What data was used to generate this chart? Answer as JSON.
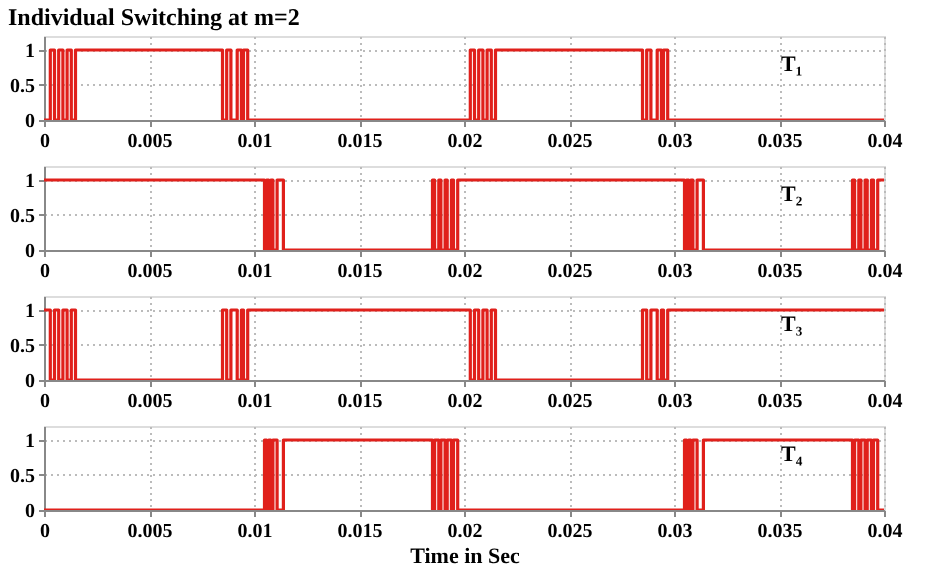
{
  "chart_data": [
    {
      "type": "step",
      "title": "Individual Switching at m=2",
      "x": [
        0,
        0.0003,
        0.0005,
        0.0007,
        0.0009,
        0.0011,
        0.0013,
        0.0015,
        0.0085,
        0.0087,
        0.0089,
        0.0092,
        0.0094,
        0.0095,
        0.0097,
        0.0203,
        0.0205,
        0.0207,
        0.0209,
        0.0211,
        0.0213,
        0.0215,
        0.0285,
        0.0287,
        0.0289,
        0.0292,
        0.0294,
        0.0295,
        0.0297,
        0.04
      ],
      "series": [
        {
          "color": "#e0201b",
          "values": [
            0,
            1,
            0,
            1,
            0,
            1,
            0,
            1,
            0,
            1,
            0,
            1,
            0,
            1,
            0,
            1,
            0,
            1,
            0,
            1,
            0,
            1,
            0,
            1,
            0,
            1,
            0,
            1,
            0,
            0
          ]
        }
      ],
      "xlim": [
        0,
        0.04
      ],
      "xticks": [
        0,
        0.005,
        0.01,
        0.015,
        0.02,
        0.025,
        0.03,
        0.035,
        0.04
      ],
      "ylim": [
        0,
        1.2
      ],
      "yticks": [
        0,
        0.5,
        1
      ],
      "grid": true,
      "annotations": [
        "T₁"
      ]
    },
    {
      "type": "step",
      "x": [
        0,
        0.0105,
        0.0106,
        0.0107,
        0.0108,
        0.0109,
        0.0111,
        0.0114,
        0.0115,
        0.0185,
        0.0186,
        0.0188,
        0.0189,
        0.0191,
        0.0192,
        0.0194,
        0.0195,
        0.0197,
        0.02,
        0.0305,
        0.0306,
        0.0307,
        0.0308,
        0.0309,
        0.0311,
        0.0314,
        0.0315,
        0.0385,
        0.0386,
        0.0388,
        0.0389,
        0.0391,
        0.0392,
        0.0394,
        0.0395,
        0.0397,
        0.04
      ],
      "series": [
        {
          "color": "#e0201b",
          "values": [
            1,
            0,
            1,
            0,
            1,
            0,
            1,
            0,
            0,
            1,
            0,
            1,
            0,
            1,
            0,
            1,
            0,
            1,
            1,
            0,
            1,
            0,
            1,
            0,
            1,
            0,
            0,
            1,
            0,
            1,
            0,
            1,
            0,
            1,
            0,
            1,
            1
          ]
        }
      ],
      "xlim": [
        0,
        0.04
      ],
      "xticks": [
        0,
        0.005,
        0.01,
        0.015,
        0.02,
        0.025,
        0.03,
        0.035,
        0.04
      ],
      "ylim": [
        0,
        1.2
      ],
      "yticks": [
        0,
        0.5,
        1
      ],
      "grid": true,
      "annotations": [
        "T₂"
      ]
    },
    {
      "type": "step",
      "x": [
        0,
        0.0003,
        0.0005,
        0.0007,
        0.0009,
        0.0011,
        0.0013,
        0.0015,
        0.0085,
        0.0087,
        0.0089,
        0.0092,
        0.0094,
        0.0095,
        0.0097,
        0.0203,
        0.0205,
        0.0207,
        0.0209,
        0.0211,
        0.0213,
        0.0215,
        0.0285,
        0.0287,
        0.0289,
        0.0292,
        0.0294,
        0.0295,
        0.0297,
        0.04
      ],
      "series": [
        {
          "color": "#e0201b",
          "values": [
            1,
            0,
            1,
            0,
            1,
            0,
            1,
            0,
            1,
            0,
            1,
            0,
            1,
            0,
            1,
            0,
            1,
            0,
            1,
            0,
            1,
            0,
            1,
            0,
            1,
            0,
            1,
            0,
            1,
            1
          ]
        }
      ],
      "xlim": [
        0,
        0.04
      ],
      "xticks": [
        0,
        0.005,
        0.01,
        0.015,
        0.02,
        0.025,
        0.03,
        0.035,
        0.04
      ],
      "ylim": [
        0,
        1.2
      ],
      "yticks": [
        0,
        0.5,
        1
      ],
      "grid": true,
      "annotations": [
        "T₃"
      ]
    },
    {
      "type": "step",
      "xlabel": "Time in Sec",
      "x": [
        0,
        0.0105,
        0.0106,
        0.0107,
        0.0108,
        0.0109,
        0.0111,
        0.0114,
        0.0115,
        0.0185,
        0.0186,
        0.0188,
        0.0189,
        0.0191,
        0.0192,
        0.0194,
        0.0195,
        0.0197,
        0.02,
        0.0305,
        0.0306,
        0.0307,
        0.0308,
        0.0309,
        0.0311,
        0.0314,
        0.0315,
        0.0385,
        0.0386,
        0.0388,
        0.0389,
        0.0391,
        0.0392,
        0.0394,
        0.0395,
        0.0397,
        0.04
      ],
      "series": [
        {
          "color": "#e0201b",
          "values": [
            0,
            1,
            0,
            1,
            0,
            1,
            0,
            1,
            1,
            0,
            1,
            0,
            1,
            0,
            1,
            0,
            1,
            0,
            0,
            1,
            0,
            1,
            0,
            1,
            0,
            1,
            1,
            0,
            1,
            0,
            1,
            0,
            1,
            0,
            1,
            0,
            0
          ]
        }
      ],
      "xlim": [
        0,
        0.04
      ],
      "xticks": [
        0,
        0.005,
        0.01,
        0.015,
        0.02,
        0.025,
        0.03,
        0.035,
        0.04
      ],
      "ylim": [
        0,
        1.2
      ],
      "yticks": [
        0,
        0.5,
        1
      ],
      "grid": true,
      "annotations": [
        "T₄"
      ]
    }
  ]
}
